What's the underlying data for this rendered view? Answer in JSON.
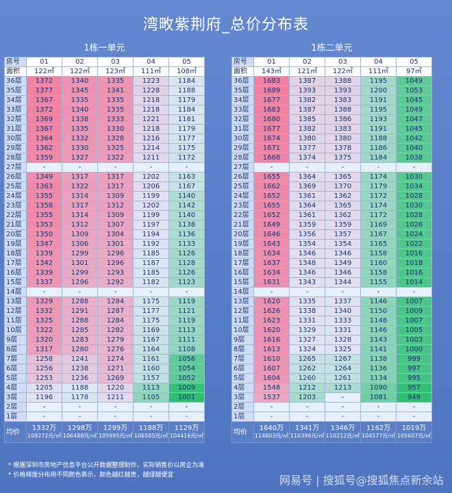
{
  "title": "湾畋紫荆府_总价分布表",
  "buildings": [
    {
      "name": "1栋一单元",
      "units": [
        "01",
        "02",
        "03",
        "04",
        "05"
      ],
      "areas": [
        "122㎡",
        "122㎡",
        "123㎡",
        "111㎡",
        "108㎡"
      ],
      "floors": [
        {
          "floor": "36层",
          "values": [
            "1372",
            "1340",
            "1335",
            "1223",
            "1184"
          ]
        },
        {
          "floor": "35层",
          "values": [
            "1377",
            "1345",
            "1341",
            "1228",
            "1188"
          ]
        },
        {
          "floor": "34层",
          "values": [
            "1367",
            "1335",
            "1335",
            "1218",
            "1179"
          ]
        },
        {
          "floor": "33层",
          "values": [
            "1372",
            "1340",
            "1335",
            "1218",
            "1184"
          ]
        },
        {
          "floor": "32层",
          "values": [
            "1369",
            "1338",
            "1333",
            "1221",
            "1181"
          ]
        },
        {
          "floor": "31层",
          "values": [
            "1367",
            "1335",
            "1330",
            "1218",
            "1179"
          ]
        },
        {
          "floor": "30层",
          "values": [
            "1364",
            "1332",
            "1328",
            "1216",
            "1177"
          ]
        },
        {
          "floor": "29层",
          "values": [
            "1362",
            "1330",
            "1325",
            "1214",
            "1175"
          ]
        },
        {
          "floor": "28层",
          "values": [
            "1359",
            "1327",
            "1322",
            "1211",
            "1172"
          ]
        },
        {
          "floor": "27层",
          "values": [
            "-",
            "-",
            "-",
            "-",
            "-"
          ]
        },
        {
          "floor": "26层",
          "values": [
            "1349",
            "1317",
            "1317",
            "1202",
            "1163"
          ]
        },
        {
          "floor": "25层",
          "values": [
            "1363",
            "1322",
            "1317",
            "1206",
            "1167"
          ]
        },
        {
          "floor": "24层",
          "values": [
            "1355",
            "1314",
            "1309",
            "1199",
            "1140"
          ]
        },
        {
          "floor": "23层",
          "values": [
            "1358",
            "1317",
            "1312",
            "1202",
            "1142"
          ]
        },
        {
          "floor": "22层",
          "values": [
            "1355",
            "1314",
            "1309",
            "1199",
            "1140"
          ]
        },
        {
          "floor": "21层",
          "values": [
            "1353",
            "1312",
            "1307",
            "1197",
            "1138"
          ]
        },
        {
          "floor": "20层",
          "values": [
            "1350",
            "1309",
            "1304",
            "1194",
            "1136"
          ]
        },
        {
          "floor": "19层",
          "values": [
            "1347",
            "1306",
            "1301",
            "1192",
            "1133"
          ]
        },
        {
          "floor": "18层",
          "values": [
            "1339",
            "1299",
            "1296",
            "1185",
            "1126"
          ]
        },
        {
          "floor": "17层",
          "values": [
            "1342",
            "1301",
            "1296",
            "1187",
            "1128"
          ]
        },
        {
          "floor": "16层",
          "values": [
            "1339",
            "1299",
            "1293",
            "1185",
            "1126"
          ]
        },
        {
          "floor": "15层",
          "values": [
            "1337",
            "1296",
            "1292",
            "1182",
            "1123"
          ]
        },
        {
          "floor": "14层",
          "values": [
            "-",
            "-",
            "-",
            "-",
            "-"
          ]
        },
        {
          "floor": "13层",
          "values": [
            "1329",
            "1288",
            "1284",
            "1175",
            "1119"
          ]
        },
        {
          "floor": "12层",
          "values": [
            "1332",
            "1291",
            "1287",
            "1177",
            "1121"
          ]
        },
        {
          "floor": "11层",
          "values": [
            "1325",
            "1288",
            "1284",
            "1175",
            "1119"
          ]
        },
        {
          "floor": "10层",
          "values": [
            "1322",
            "1285",
            "1282",
            "1169",
            "1113"
          ]
        },
        {
          "floor": "9层",
          "values": [
            "1320",
            "1283",
            "1279",
            "1167",
            "1111"
          ]
        },
        {
          "floor": "8层",
          "values": [
            "1317",
            "1280",
            "1276",
            "1164",
            "1108"
          ]
        },
        {
          "floor": "7层",
          "values": [
            "1258",
            "1241",
            "1274",
            "1161",
            "1056"
          ]
        },
        {
          "floor": "6层",
          "values": [
            "1256",
            "1238",
            "1271",
            "1160",
            "1054"
          ]
        },
        {
          "floor": "5层",
          "values": [
            "1253",
            "1236",
            "1269",
            "1157",
            "1052"
          ]
        },
        {
          "floor": "4层",
          "values": [
            "1205",
            "1188",
            "1220",
            "1113",
            "1009"
          ]
        },
        {
          "floor": "3层",
          "values": [
            "1196",
            "1178",
            "1211",
            "1105",
            "1001"
          ]
        },
        {
          "floor": "2层",
          "values": [
            "-",
            "-",
            "-",
            "-",
            "-"
          ]
        },
        {
          "floor": "1层",
          "values": [
            "-",
            "-",
            "-",
            "-",
            "-"
          ]
        }
      ],
      "avg": [
        {
          "total": "1332万",
          "unit": "109272元/㎡"
        },
        {
          "total": "1298万",
          "unit": "106488元/㎡"
        },
        {
          "total": "1299万",
          "unit": "105995元/㎡"
        },
        {
          "total": "1188万",
          "unit": "106585元/㎡"
        },
        {
          "total": "1129万",
          "unit": "104416元/㎡"
        }
      ]
    },
    {
      "name": "1栋二单元",
      "units": [
        "01",
        "02",
        "03",
        "04",
        "05"
      ],
      "areas": [
        "143㎡",
        "121㎡",
        "122㎡",
        "111㎡",
        "97㎡"
      ],
      "floors": [
        {
          "floor": "36层",
          "values": [
            "1683",
            "1387",
            "1388",
            "1195",
            "1049"
          ]
        },
        {
          "floor": "35层",
          "values": [
            "1689",
            "1393",
            "1393",
            "1200",
            "1053"
          ]
        },
        {
          "floor": "34层",
          "values": [
            "1677",
            "1382",
            "1383",
            "1191",
            "1045"
          ]
        },
        {
          "floor": "33层",
          "values": [
            "1683",
            "1387",
            "1388",
            "1195",
            "1049"
          ]
        },
        {
          "floor": "32层",
          "values": [
            "1680",
            "1385",
            "1386",
            "1193",
            "1047"
          ]
        },
        {
          "floor": "31层",
          "values": [
            "1677",
            "1382",
            "1383",
            "1191",
            "1045"
          ]
        },
        {
          "floor": "30层",
          "values": [
            "1674",
            "1380",
            "1380",
            "1188",
            "1042"
          ]
        },
        {
          "floor": "29层",
          "values": [
            "1671",
            "1377",
            "1378",
            "1186",
            "1040"
          ]
        },
        {
          "floor": "28层",
          "values": [
            "1668",
            "1374",
            "1375",
            "1184",
            "1038"
          ]
        },
        {
          "floor": "27层",
          "values": [
            "-",
            "-",
            "-",
            "-",
            "-"
          ]
        },
        {
          "floor": "26层",
          "values": [
            "1655",
            "1364",
            "1365",
            "1174",
            "1030"
          ]
        },
        {
          "floor": "25层",
          "values": [
            "1662",
            "1369",
            "1370",
            "1179",
            "1034"
          ]
        },
        {
          "floor": "24层",
          "values": [
            "1652",
            "1361",
            "1362",
            "1172",
            "1028"
          ]
        },
        {
          "floor": "23层",
          "values": [
            "1655",
            "1364",
            "1365",
            "1174",
            "1030"
          ]
        },
        {
          "floor": "22层",
          "values": [
            "1652",
            "1361",
            "1362",
            "1172",
            "1028"
          ]
        },
        {
          "floor": "21层",
          "values": [
            "1649",
            "1359",
            "1359",
            "1169",
            "1026"
          ]
        },
        {
          "floor": "20层",
          "values": [
            "1646",
            "1356",
            "1357",
            "1167",
            "1024"
          ]
        },
        {
          "floor": "19层",
          "values": [
            "1643",
            "1354",
            "1354",
            "1165",
            "1022"
          ]
        },
        {
          "floor": "18层",
          "values": [
            "1634",
            "1346",
            "1346",
            "1158",
            "1016"
          ]
        },
        {
          "floor": "17层",
          "values": [
            "1637",
            "1348",
            "1349",
            "1160",
            "1018"
          ]
        },
        {
          "floor": "16层",
          "values": [
            "1634",
            "1346",
            "1346",
            "1158",
            "1016"
          ]
        },
        {
          "floor": "15层",
          "values": [
            "1631",
            "1343",
            "1344",
            "1155",
            "1014"
          ]
        },
        {
          "floor": "14层",
          "values": [
            "-",
            "-",
            "-",
            "-",
            "-"
          ]
        },
        {
          "floor": "13层",
          "values": [
            "1620",
            "1335",
            "1337",
            "1146",
            "1007"
          ]
        },
        {
          "floor": "12层",
          "values": [
            "1626",
            "1338",
            "1340",
            "1150",
            "1009"
          ]
        },
        {
          "floor": "11层",
          "values": [
            "1623",
            "1331",
            "1333",
            "1148",
            "1007"
          ]
        },
        {
          "floor": "10层",
          "values": [
            "1620",
            "1329",
            "1331",
            "1146",
            "1005"
          ]
        },
        {
          "floor": "9层",
          "values": [
            "1616",
            "1327",
            "1328",
            "1143",
            "1003"
          ]
        },
        {
          "floor": "8层",
          "values": [
            "1613",
            "1324",
            "1325",
            "1141",
            "1000"
          ]
        },
        {
          "floor": "7层",
          "values": [
            "1610",
            "1265",
            "1267",
            "1138",
            "999"
          ]
        },
        {
          "floor": "6层",
          "values": [
            "1607",
            "1262",
            "1264",
            "1136",
            "997"
          ]
        },
        {
          "floor": "5层",
          "values": [
            "1604",
            "1260",
            "1261",
            "1134",
            "995"
          ]
        },
        {
          "floor": "4层",
          "values": [
            "1548",
            "1212",
            "1213",
            "1090",
            "957"
          ]
        },
        {
          "floor": "3层",
          "values": [
            "1537",
            "1203",
            "-",
            "1081",
            "949"
          ]
        },
        {
          "floor": "2层",
          "values": [
            "-",
            "-",
            "-",
            "-",
            "-"
          ]
        },
        {
          "floor": "1层",
          "values": [
            "-",
            "-",
            "-",
            "-",
            "-"
          ]
        }
      ],
      "avg": [
        {
          "total": "1640万",
          "unit": "114803元/㎡"
        },
        {
          "total": "1341万",
          "unit": "110396元/㎡"
        },
        {
          "total": "1346万",
          "unit": "110212元/㎡"
        },
        {
          "total": "1162万",
          "unit": "104577元/㎡"
        },
        {
          "total": "1019万",
          "unit": "105607元/㎡"
        }
      ]
    }
  ],
  "row_labels": {
    "unit": "房号",
    "area": "面积",
    "avg": "均价"
  },
  "notes": [
    "* 根据深圳市房地产信息平台公开数据整理制作，实际销售价以房企为准",
    "* 价格梯度分布用不同颜色表示，颜色越红越贵，越绿越便宜"
  ],
  "watermark": "网易号 | 搜狐号@搜狐焦点新余站",
  "colors": {
    "expensive": "#f07fa0",
    "cheap": "#2fbf73",
    "neutral": "#dfe6f6"
  }
}
